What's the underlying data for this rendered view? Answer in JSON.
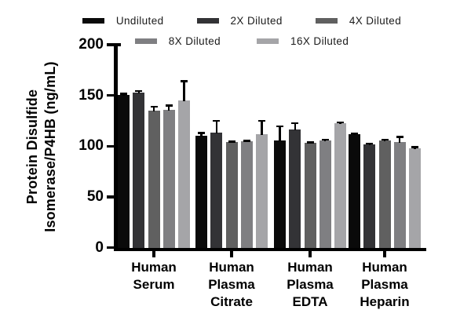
{
  "legend": {
    "rows": [
      [
        "Undiluted",
        "2X Diluted",
        "4X Diluted"
      ],
      [
        "8X Diluted",
        "16X Diluted"
      ]
    ]
  },
  "chart_data": {
    "type": "bar",
    "title": "",
    "ylabel_lines": [
      "Protein Disulfide",
      "Isomerase/P4HB (ng/mL)"
    ],
    "ylabel": "Protein Disulfide Isomerase/P4HB (ng/mL)",
    "xlabel": "",
    "ylim": [
      0,
      200
    ],
    "yticks": [
      0,
      50,
      100,
      150,
      200
    ],
    "grid": false,
    "legend_position": "top",
    "error_bars": "upper, with caps",
    "categories": [
      "Human Serum",
      "Human Plasma Citrate",
      "Human Plasma EDTA",
      "Human Plasma Heparin"
    ],
    "category_label_lines": [
      [
        "Human",
        "Serum"
      ],
      [
        "Human",
        "Plasma",
        "Citrate"
      ],
      [
        "Human",
        "Plasma",
        "EDTA"
      ],
      [
        "Human",
        "Plasma",
        "Heparin"
      ]
    ],
    "series": [
      {
        "name": "Undiluted",
        "color": "#0a0a0a",
        "values": [
          150.5,
          110.0,
          105.5,
          111.5
        ],
        "errors": [
          2.0,
          4.0,
          15.0,
          2.0
        ]
      },
      {
        "name": "2X Diluted",
        "color": "#333336",
        "values": [
          152.5,
          113.0,
          116.5,
          101.5
        ],
        "errors": [
          3.0,
          13.0,
          7.0,
          2.0
        ]
      },
      {
        "name": "4X Diluted",
        "color": "#606060",
        "values": [
          135.0,
          104.0,
          103.5,
          105.5
        ],
        "errors": [
          5.0,
          1.5,
          1.0,
          2.0
        ]
      },
      {
        "name": "8X Diluted",
        "color": "#7f7f82",
        "values": [
          136.0,
          104.5,
          105.5,
          104.0
        ],
        "errors": [
          5.0,
          1.5,
          2.0,
          6.0
        ]
      },
      {
        "name": "16X Diluted",
        "color": "#a5a5a8",
        "values": [
          145.0,
          112.0,
          122.5,
          97.5
        ],
        "errors": [
          20.0,
          14.0,
          2.0,
          2.5
        ]
      }
    ],
    "error_color": "#000000"
  },
  "colors": {
    "axis": "#000000",
    "background": "#ffffff",
    "legend_text": "#1b1b1b"
  }
}
